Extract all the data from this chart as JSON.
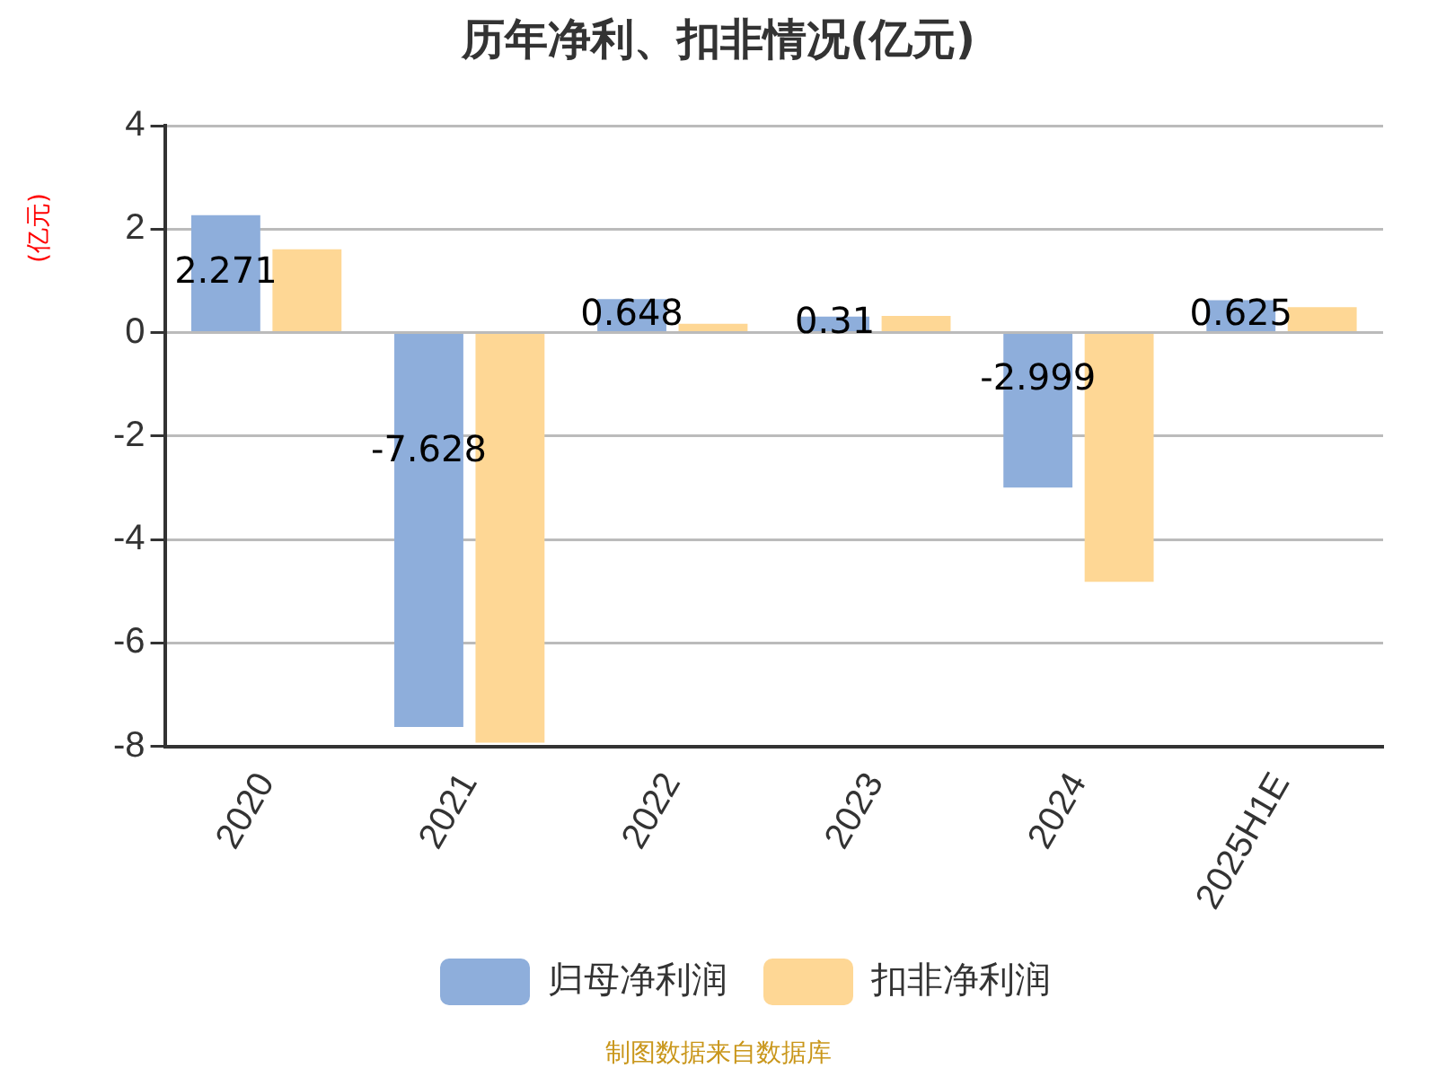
{
  "chart_data": {
    "type": "bar",
    "title": "历年净利、扣非情况(亿元)",
    "ylabel": "(亿元)",
    "categories": [
      "2020",
      "2021",
      "2022",
      "2023",
      "2024",
      "2025H1E"
    ],
    "series": [
      {
        "name": "归母净利润",
        "color": "#8eaedb",
        "values": [
          2.271,
          -7.628,
          0.648,
          0.31,
          -2.999,
          0.625
        ],
        "value_labels": [
          "2.271",
          "-7.628",
          "0.648",
          "0.31",
          "-2.999",
          "0.625"
        ]
      },
      {
        "name": "扣非净利润",
        "color": "#fed795",
        "values": [
          1.61,
          -7.93,
          0.17,
          0.32,
          -4.82,
          0.49
        ]
      }
    ],
    "ylim": [
      -8,
      4
    ],
    "yticks": [
      -8,
      -6,
      -4,
      -2,
      0,
      2,
      4
    ],
    "grid": "y",
    "legend": "bottom",
    "annotations": [
      "制图数据来自数据库"
    ]
  }
}
